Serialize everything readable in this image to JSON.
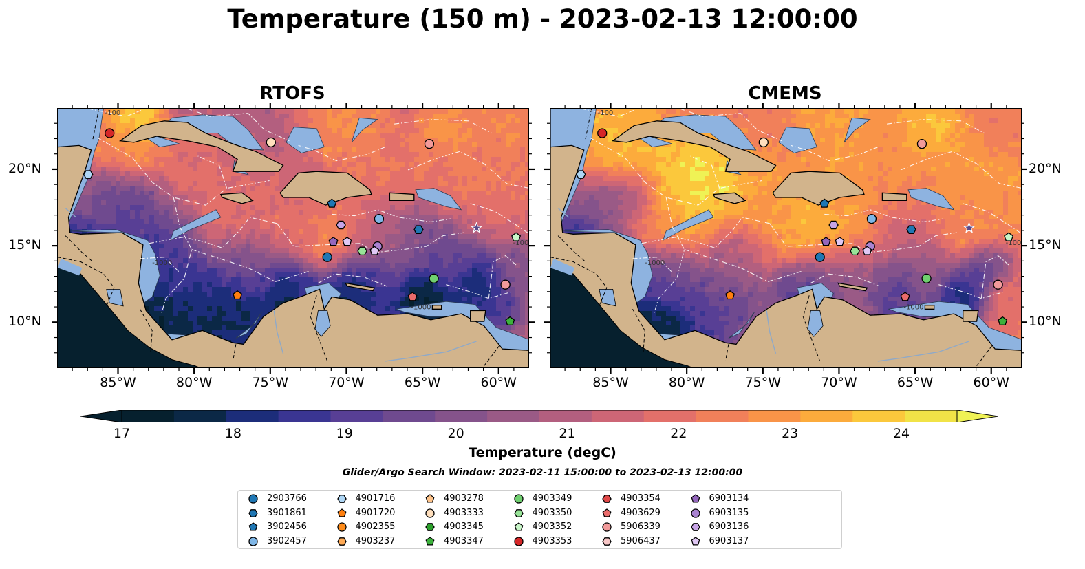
{
  "title": "Temperature (150 m) - 2023-02-13 12:00:00",
  "panels": [
    {
      "title": "RTOFS",
      "variant": "rtofs"
    },
    {
      "title": "CMEMS",
      "variant": "cmems"
    }
  ],
  "axes": {
    "lon_labels": [
      "85°W",
      "80°W",
      "75°W",
      "70°W",
      "65°W",
      "60°W"
    ],
    "lat_labels": [
      "20°N",
      "15°N",
      "10°N"
    ],
    "lon_range": [
      -89,
      -58
    ],
    "lat_range": [
      7,
      24
    ]
  },
  "contour_labels": [
    "-1000",
    "-100"
  ],
  "colorbar": {
    "label": "Temperature (degC)",
    "ticks": [
      "17",
      "18",
      "19",
      "20",
      "21",
      "22",
      "23",
      "24"
    ],
    "min": 17,
    "max": 24.5,
    "step": 0.5,
    "extend": "both",
    "colors": [
      "#06202e",
      "#0b2846",
      "#1c2d7a",
      "#3a3592",
      "#583f95",
      "#6f4a8f",
      "#85538b",
      "#9a5a86",
      "#b35f7f",
      "#cd6676",
      "#e3706a",
      "#f1805a",
      "#f99448",
      "#fcab3c",
      "#fbc83c",
      "#f1e347"
    ],
    "under_color": "#06202e",
    "over_color": "#eff255"
  },
  "search_window": "Glider/Argo Search Window: 2023-02-11 15:00:00 to 2023-02-13 12:00:00",
  "colors": {
    "land": "#d2b48c",
    "shelf": "#8eb3e0",
    "deep_cold": "#06202e",
    "coast": "#000000",
    "boundary": "#ffffff"
  },
  "legend": [
    {
      "id": "2903766",
      "marker": "circle",
      "color": "#1f77b4"
    },
    {
      "id": "3901861",
      "marker": "hexagon",
      "color": "#1f77b4"
    },
    {
      "id": "3902456",
      "marker": "pentagon",
      "color": "#1f77b4"
    },
    {
      "id": "3902457",
      "marker": "circle",
      "color": "#7fb6e6"
    },
    {
      "id": "4901716",
      "marker": "hexagon",
      "color": "#aed6f5"
    },
    {
      "id": "4901720",
      "marker": "pentagon",
      "color": "#ff7f0e"
    },
    {
      "id": "4902355",
      "marker": "circle",
      "color": "#ff8c1a"
    },
    {
      "id": "4903237",
      "marker": "hexagon",
      "color": "#ffaa55"
    },
    {
      "id": "4903278",
      "marker": "pentagon",
      "color": "#ffc48a"
    },
    {
      "id": "4903333",
      "marker": "circle",
      "color": "#ffdfbd"
    },
    {
      "id": "4903345",
      "marker": "hexagon",
      "color": "#2ca02c"
    },
    {
      "id": "4903347",
      "marker": "pentagon",
      "color": "#3cb23c"
    },
    {
      "id": "4903349",
      "marker": "circle",
      "color": "#6fcf6f"
    },
    {
      "id": "4903350",
      "marker": "hexagon",
      "color": "#98e498"
    },
    {
      "id": "4903352",
      "marker": "pentagon",
      "color": "#c8f5c8"
    },
    {
      "id": "4903353",
      "marker": "circle",
      "color": "#d62728"
    },
    {
      "id": "4903354",
      "marker": "hexagon",
      "color": "#e04848"
    },
    {
      "id": "4903629",
      "marker": "pentagon",
      "color": "#ea6b6b"
    },
    {
      "id": "5906339",
      "marker": "circle",
      "color": "#f29a9a"
    },
    {
      "id": "5906437",
      "marker": "hexagon",
      "color": "#f7c6c6"
    },
    {
      "id": "6903134",
      "marker": "pentagon",
      "color": "#9467bd"
    },
    {
      "id": "6903135",
      "marker": "circle",
      "color": "#a983d1"
    },
    {
      "id": "6903136",
      "marker": "hexagon",
      "color": "#c7a4e6"
    },
    {
      "id": "6903137",
      "marker": "pentagon",
      "color": "#e0c8f4"
    }
  ],
  "floats": [
    {
      "id": "4903353",
      "lon": -85.6,
      "lat": 22.4
    },
    {
      "id": "4901716",
      "lon": -87.0,
      "lat": 19.7
    },
    {
      "id": "4903333",
      "lon": -75.0,
      "lat": 21.8
    },
    {
      "id": "5906339",
      "lon": -64.6,
      "lat": 21.7
    },
    {
      "id": "3902456",
      "lon": -71.0,
      "lat": 17.8
    },
    {
      "id": "3902457",
      "lon": -67.9,
      "lat": 16.8
    },
    {
      "id": "3901861",
      "lon": -65.3,
      "lat": 16.1
    },
    {
      "id": "6903136",
      "lon": -70.4,
      "lat": 16.4
    },
    {
      "id": "6903134",
      "lon": -70.9,
      "lat": 15.3
    },
    {
      "id": "6903137",
      "lon": -70.0,
      "lat": 15.3
    },
    {
      "id": "6903135",
      "lon": -68.0,
      "lat": 15.0
    },
    {
      "id": "6903137",
      "lon": -68.2,
      "lat": 14.7
    },
    {
      "id": "4903350",
      "lon": -69.0,
      "lat": 14.7
    },
    {
      "id": "2903766",
      "lon": -71.3,
      "lat": 14.3
    },
    {
      "id": "4903349",
      "lon": -64.3,
      "lat": 12.9
    },
    {
      "id": "4903629",
      "lon": -65.7,
      "lat": 11.7
    },
    {
      "id": "4901720",
      "lon": -77.2,
      "lat": 11.8
    },
    {
      "id": "5906339",
      "lon": -59.6,
      "lat": 12.5
    },
    {
      "id": "4903352",
      "lon": -58.9,
      "lat": 15.6
    },
    {
      "id": "4903347",
      "lon": -59.3,
      "lat": 10.1
    }
  ]
}
